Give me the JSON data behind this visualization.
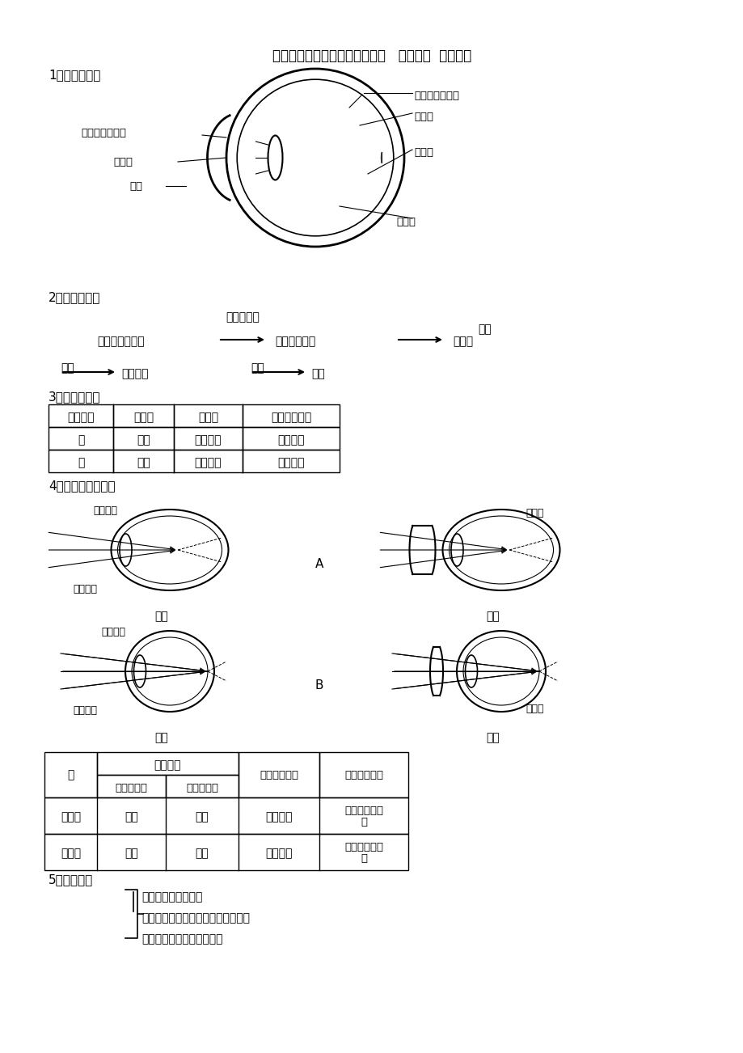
{
  "title": "新冀教版生物下册知识点第四章   合理用脑  高效学习",
  "section1": "1、眼球的结构",
  "section2": "2、视觉的形成",
  "section3": "3、正常眼视物",
  "section4": "4、近视眼和远视眼",
  "section5": "5、耳的结构",
  "bg_color": "#ffffff",
  "text_color": "#000000",
  "table3_headers": [
    "物体距离",
    "睫状肌",
    "晶状体",
    "清晰物像位置"
  ],
  "table3_rows": [
    [
      "远",
      "舒张",
      "凸度减小",
      "视网膜上"
    ],
    [
      "近",
      "收缩",
      "凸度增大",
      "视网膜上"
    ]
  ],
  "table4_headers": [
    "眼",
    "晶状体凸度",
    "眼球前后径",
    "清晰物像位置",
    "矫正（眼镜）"
  ],
  "table4_rows": [
    [
      "近视眼",
      "过大",
      "过长",
      "视网膜前",
      "戴适度的凸透\n镜"
    ],
    [
      "远视眼",
      "过小",
      "过短",
      "视网膜后",
      "戴适度的凹透\n镜"
    ]
  ],
  "ear_lines": [
    "外耳：耳廓、外耳道",
    "中耳：咽鼓管、鼓膜、鼓室、听小骨",
    "内耳：半规管、前庭、耳蜗"
  ]
}
